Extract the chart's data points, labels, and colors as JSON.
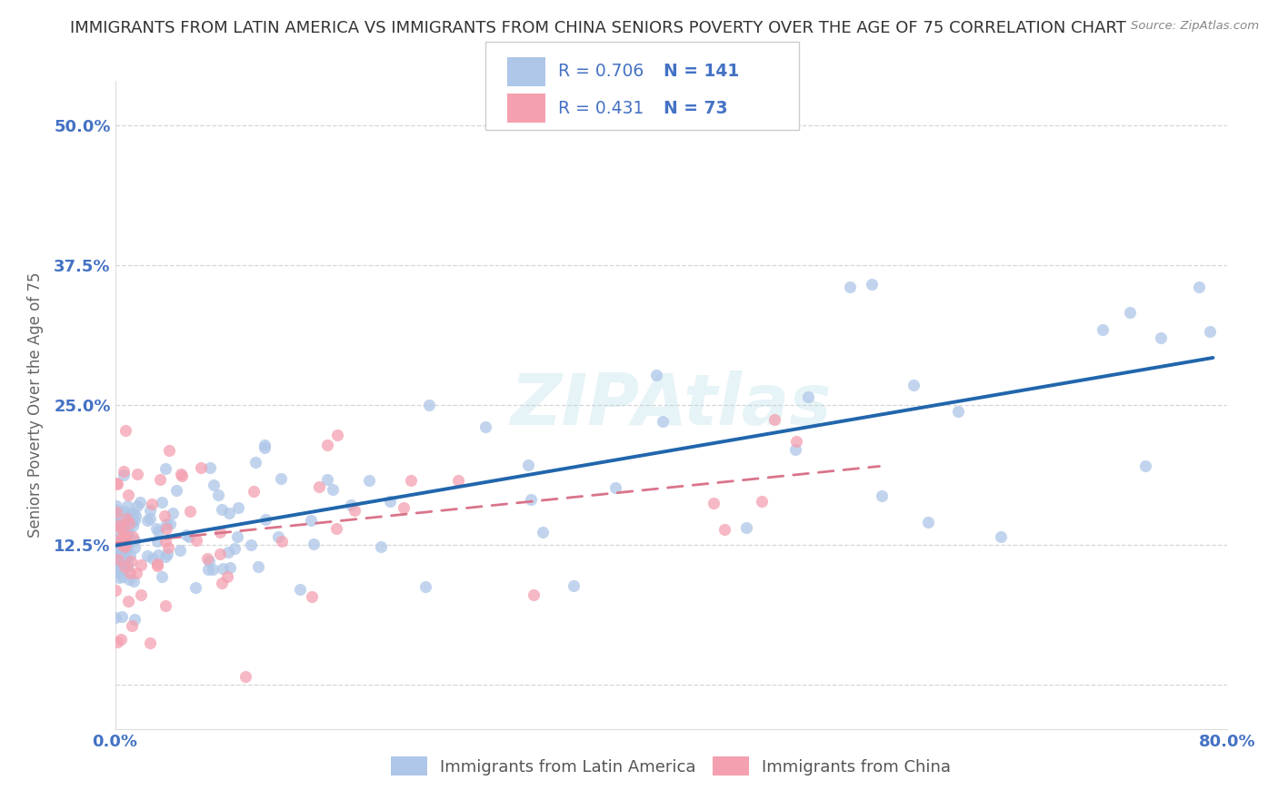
{
  "title": "IMMIGRANTS FROM LATIN AMERICA VS IMMIGRANTS FROM CHINA SENIORS POVERTY OVER THE AGE OF 75 CORRELATION CHART",
  "source": "Source: ZipAtlas.com",
  "ylabel": "Seniors Poverty Over the Age of 75",
  "xlim": [
    0.0,
    0.8
  ],
  "ylim": [
    -0.04,
    0.54
  ],
  "yticks": [
    0.0,
    0.125,
    0.25,
    0.375,
    0.5
  ],
  "ytick_labels": [
    "",
    "12.5%",
    "25.0%",
    "37.5%",
    "50.0%"
  ],
  "xticks": [
    0.0,
    0.8
  ],
  "xtick_labels": [
    "0.0%",
    "80.0%"
  ],
  "series1_color": "#aec6e8",
  "series1_edge": "#7aafd4",
  "series2_color": "#f4a0b0",
  "series2_edge": "#e07090",
  "series1_line_color": "#2166ac",
  "series2_line_color": "#d9748a",
  "series1_label": "Immigrants from Latin America",
  "series2_label": "Immigrants from China",
  "R1": 0.706,
  "N1": 141,
  "R2": 0.431,
  "N2": 73,
  "background_color": "#ffffff",
  "watermark": "ZIPAtlas",
  "grid_color": "#cccccc",
  "title_fontsize": 13,
  "axis_label_fontsize": 12,
  "tick_fontsize": 13,
  "tick_color": "#4472c4"
}
